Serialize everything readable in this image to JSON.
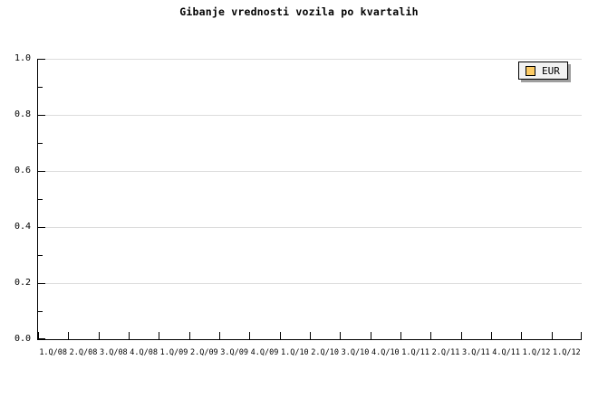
{
  "chart_data": {
    "type": "line",
    "title": "Gibanje vrednosti vozila po kvartalih",
    "x_categories": [
      "1.Q/08",
      "2.Q/08",
      "3.Q/08",
      "4.Q/08",
      "1.Q/09",
      "2.Q/09",
      "3.Q/09",
      "4.Q/09",
      "1.Q/10",
      "2.Q/10",
      "3.Q/10",
      "4.Q/10",
      "1.Q/11",
      "2.Q/11",
      "3.Q/11",
      "4.Q/11",
      "1.Q/12",
      "1.Q/12"
    ],
    "xlabel": "",
    "ylabel": "",
    "ylim": [
      0.0,
      1.0
    ],
    "y_tick_labels": [
      "1.0",
      "0.8",
      "0.6",
      "0.4",
      "0.2",
      "0.0"
    ],
    "y_minor_ticks": [
      0.9,
      0.7,
      0.5,
      0.3,
      0.1
    ],
    "grid": "horizontal-major-only",
    "legend_position": "top-right",
    "series": [
      {
        "name": "EUR",
        "color": "#FCCB65",
        "values": []
      }
    ],
    "note": "plot area is empty - no data points drawn"
  },
  "legend": {
    "items": [
      {
        "label": "EUR",
        "swatch_color": "#FCCB65"
      }
    ]
  },
  "colors": {
    "background": "#FFFFFF",
    "text": "#000000",
    "axis": "#000000",
    "gridline": "#DCDCDC",
    "legend_background": "#F2F2F2",
    "legend_border": "#000000",
    "legend_shadow": "#9E9E9E",
    "eur_swatch": "#FCCB65"
  }
}
